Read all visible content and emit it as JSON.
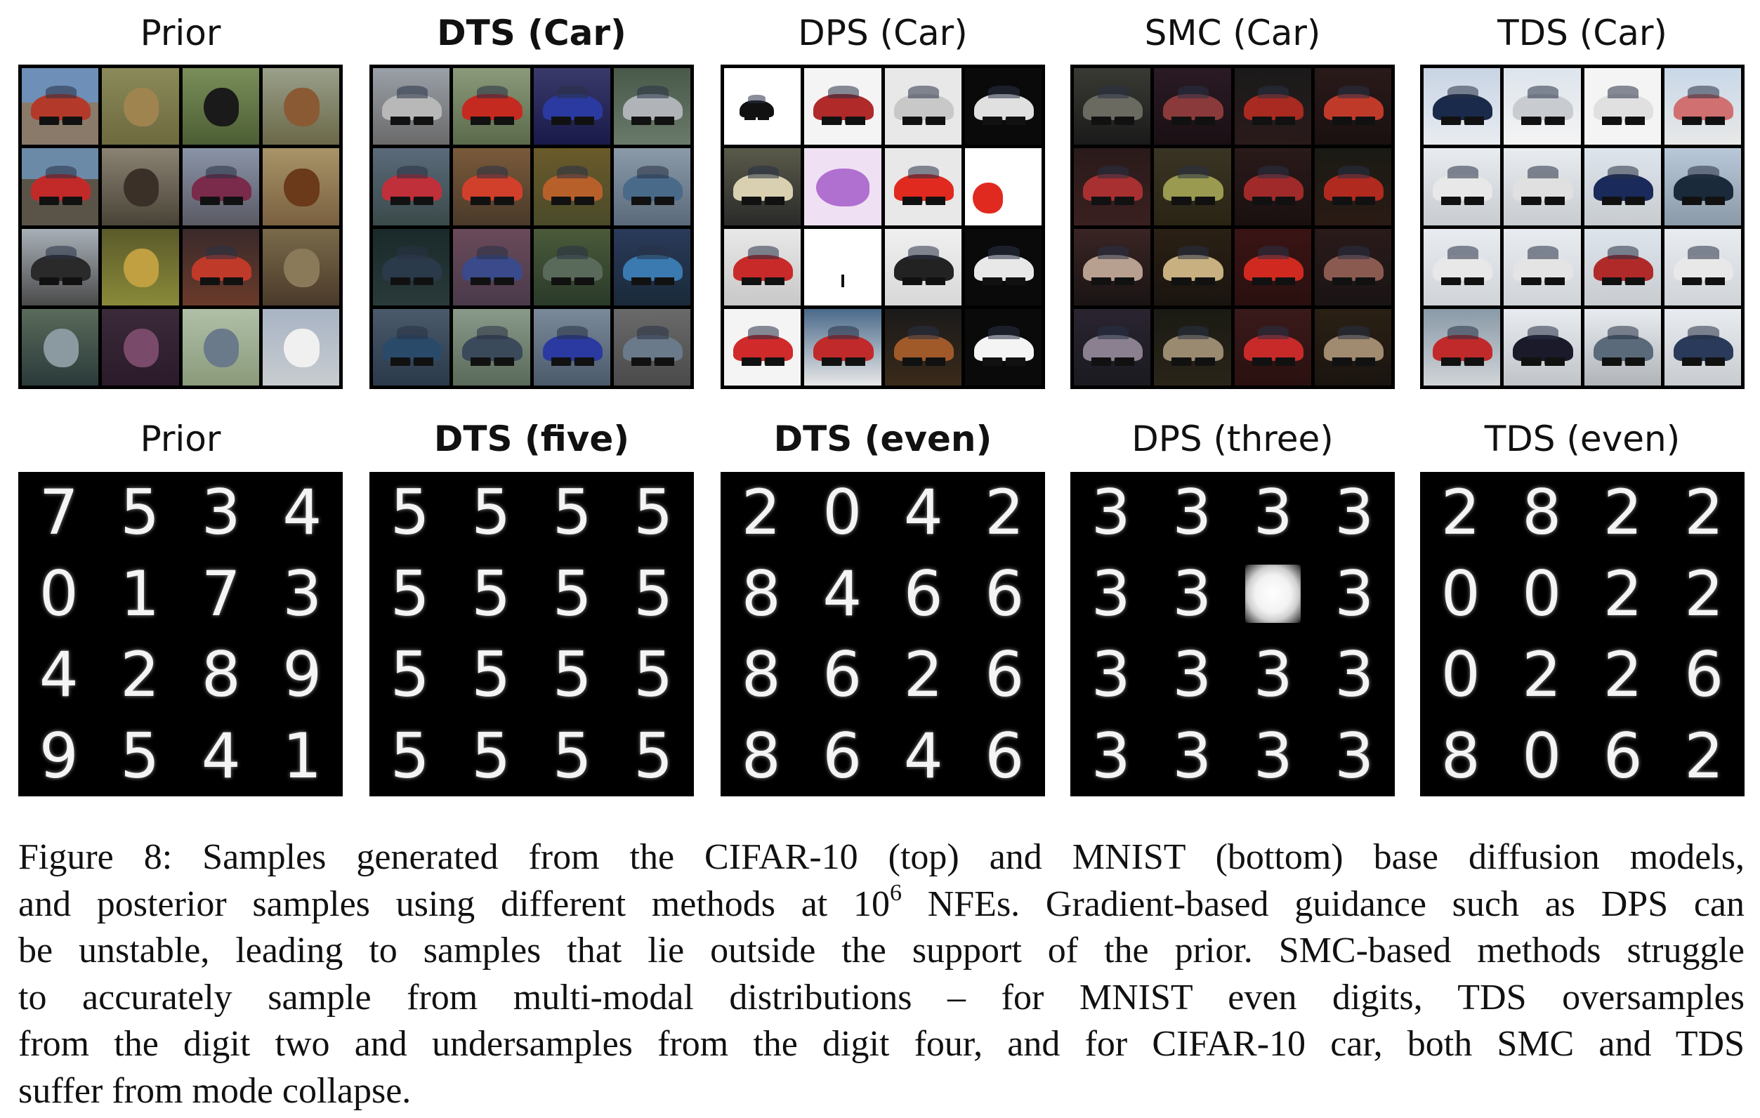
{
  "figure": {
    "top_row": {
      "dataset": "CIFAR-10",
      "panels": [
        {
          "title": "Prior",
          "bold": false
        },
        {
          "title": "DTS (Car)",
          "bold": true
        },
        {
          "title": "DPS (Car)",
          "bold": false
        },
        {
          "title": "SMC (Car)",
          "bold": false
        },
        {
          "title": "TDS (Car)",
          "bold": false
        }
      ]
    },
    "bottom_row": {
      "dataset": "MNIST",
      "panels": [
        {
          "title": "Prior",
          "bold": false,
          "digits": [
            "7",
            "5",
            "3",
            "4",
            "0",
            "1",
            "7",
            "3",
            "4",
            "2",
            "8",
            "9",
            "9",
            "5",
            "4",
            "1"
          ]
        },
        {
          "title": "DTS (five)",
          "bold": true,
          "digits": [
            "5",
            "5",
            "5",
            "5",
            "5",
            "5",
            "5",
            "5",
            "5",
            "5",
            "5",
            "5",
            "5",
            "5",
            "5",
            "5"
          ]
        },
        {
          "title": "DTS (even)",
          "bold": true,
          "digits": [
            "2",
            "0",
            "4",
            "2",
            "8",
            "4",
            "6",
            "6",
            "8",
            "6",
            "2",
            "6",
            "8",
            "6",
            "4",
            "6"
          ]
        },
        {
          "title": "DPS (three)",
          "bold": false,
          "digits": [
            "3",
            "3",
            "3",
            "3",
            "3",
            "3",
            "",
            "3",
            "3",
            "3",
            "3",
            "3",
            "3",
            "3",
            "3",
            "3"
          ]
        },
        {
          "title": "TDS (even)",
          "bold": false,
          "digits": [
            "2",
            "8",
            "2",
            "2",
            "0",
            "0",
            "2",
            "2",
            "0",
            "2",
            "2",
            "6",
            "8",
            "0",
            "6",
            "2"
          ]
        }
      ]
    },
    "caption": {
      "lines": [
        "Figure 8: Samples generated from the CIFAR-10 (top) and MNIST (bottom) base diffusion models,",
        "and posterior samples using different methods at 10",
        "be unstable, leading to samples that lie outside the support of the prior. SMC-based methods struggle",
        "to accurately sample from multi-modal distributions – for MNIST even digits, TDS oversamples",
        "from the digit two and undersamples from the digit four, and for CIFAR-10 car, both SMC and TDS",
        "suffer from mode collapse."
      ],
      "superscript": "6",
      "line2_tail": " NFEs. Gradient-based guidance such as DPS can"
    }
  }
}
